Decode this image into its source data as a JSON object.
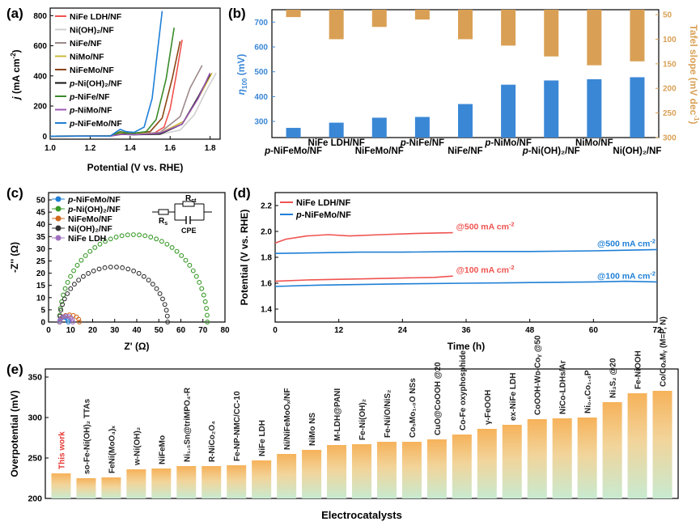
{
  "charts": {
    "a": {
      "label": "(a)",
      "xlabel": "Potential (V vs. RHE)",
      "ylabel_main": "j",
      "ylabel_unit": " (mA cm",
      "ylabel_sup": "-2",
      "ylabel_end": ")",
      "xticks": [
        "1.0",
        "1.2",
        "1.4",
        "1.6",
        "1.8"
      ],
      "yticks": [
        "0",
        "200",
        "400",
        "600",
        "800"
      ],
      "legend": [
        {
          "key": "ldh",
          "pre": "",
          "main": "NiFe LDH/NF",
          "color": "#ef5350"
        },
        {
          "key": "nioh",
          "pre": "",
          "main": "Ni(OH)₂/NF",
          "color": "#d0d0d0"
        },
        {
          "key": "nife",
          "pre": "",
          "main": "NiFe/NF",
          "color": "#9e8a8a"
        },
        {
          "key": "nimo",
          "pre": "",
          "main": "NiMo/NF",
          "color": "#cdbb3a"
        },
        {
          "key": "nifemo",
          "pre": "",
          "main": "NiFeMo/NF",
          "color": "#8b4513"
        },
        {
          "key": "pnioh",
          "pre": "p-",
          "main": "Ni(OH)₂/NF",
          "color": "#111111"
        },
        {
          "key": "pnife",
          "pre": "p-",
          "main": "NiFe/NF",
          "color": "#3a8a2a"
        },
        {
          "key": "pnimo",
          "pre": "p-",
          "main": "NiMo/NF",
          "color": "#9b59b6"
        },
        {
          "key": "pnifemo",
          "pre": "p-",
          "main": "NiFeMo/NF",
          "color": "#1e7fd6"
        }
      ]
    },
    "b": {
      "label": "(b)",
      "ylabel_left": "η",
      "ylabel_left_sub": "100",
      "ylabel_left_end": " (mV)",
      "ylabel_right": "Tafel slope (mV dec",
      "ylabel_right_sup": "-1",
      "ylabel_right_end": ")",
      "left_ticks": [
        "300",
        "400",
        "500",
        "600",
        "700"
      ],
      "right_ticks": [
        "50",
        "100",
        "150",
        "200",
        "250",
        "300"
      ],
      "categories": [
        {
          "pre": "p-",
          "main": "NiFeMo/NF"
        },
        {
          "pre": "",
          "main": "NiFe LDH/NF"
        },
        {
          "pre": "",
          "main": "NiFeMo/NF"
        },
        {
          "pre": "p-",
          "main": "NiFe/NF"
        },
        {
          "pre": "",
          "main": "NiFe/NF"
        },
        {
          "pre": "p-",
          "main": "NiMo/NF"
        },
        {
          "pre": "p-",
          "main": "Ni(OH)₂/NF"
        },
        {
          "pre": "",
          "main": "NiMo/NF"
        },
        {
          "pre": "",
          "main": "Ni(OH)₂/NF"
        }
      ],
      "overpotential_color": "#3a87d6",
      "tafel_color": "#d9a055"
    },
    "c": {
      "label": "(c)",
      "xlabel": "Z' (Ω)",
      "ylabel": "-Z'' (Ω)",
      "xticks": [
        "0",
        "10",
        "20",
        "30",
        "40",
        "50",
        "60",
        "70",
        "80"
      ],
      "yticks": [
        "0",
        "5",
        "10",
        "15",
        "20",
        "25",
        "30",
        "35",
        "40",
        "45",
        "50"
      ],
      "legend": [
        {
          "pre": "p-",
          "main": "NiFeMo/NF",
          "color": "#1e7fd6"
        },
        {
          "pre": "p-",
          "main": "Ni(OH)₂/NF",
          "color": "#3a9a2a"
        },
        {
          "pre": "",
          "main": "NiFeMo/NF",
          "color": "#d06a20"
        },
        {
          "pre": "",
          "main": "Ni(OH)₂/NF",
          "color": "#333333"
        },
        {
          "pre": "",
          "main": "NiFe LDH",
          "color": "#a070c0"
        }
      ],
      "circuit_rs": "R",
      "circuit_rs_sub": "s",
      "circuit_rct": "R",
      "circuit_rct_sub": "ct",
      "circuit_cpe": "CPE"
    },
    "d": {
      "label": "(d)",
      "xlabel": "Time (h)",
      "ylabel": "Potential (V vs. RHE)",
      "xticks": [
        "0",
        "12",
        "24",
        "36",
        "48",
        "60",
        "72"
      ],
      "yticks": [
        "1.4",
        "1.6",
        "1.8",
        "2.0",
        "2.2"
      ],
      "legend": [
        {
          "pre": "",
          "main": "NiFe LDH/NF",
          "color": "#ef5350"
        },
        {
          "pre": "p-",
          "main": "NiFeMo/NF",
          "color": "#1e7fd6"
        }
      ],
      "annotations": [
        {
          "text": "@500 mA cm",
          "sup": "-2",
          "color": "#ef5350"
        },
        {
          "text": "@500 mA cm",
          "sup": "-2",
          "color": "#1e7fd6"
        },
        {
          "text": "@100 mA cm",
          "sup": "-2",
          "color": "#ef5350"
        },
        {
          "text": "@100 mA cm",
          "sup": "-2",
          "color": "#1e7fd6"
        }
      ]
    },
    "e": {
      "label": "(e)",
      "xlabel": "Electrocatalysts",
      "ylabel": "Overpotential (mV)",
      "yticks": [
        "200",
        "250",
        "300",
        "350"
      ],
      "labels": [
        "This work",
        "so-Fe-Ni(OH)₂ TTAs",
        "FeNi(MoO₄)ₓ",
        "w-Ni(OH)₂",
        "NiFeMo",
        "Ni₁.₅Sn@triMPO₄-R",
        "R-NiCo₂O₄",
        "Fe-NP-NMC/CC-10",
        "NiFe LDH",
        "Ni/NiFeMoOₓ/NF",
        "NiMo NS",
        "M-LDH@PANI",
        "Fe-Ni(OH)₂",
        "Fe-Ni/O/NiS₂",
        "Co₅Mo₁.₀O NSs",
        "CuO@CoOOH @20",
        "Co-Fe oxyphosphide",
        "γ-FeOOH",
        "ex-NiFe LDH",
        "CoOOH-Wᴅ-Coᵧ @50",
        "NiCo-LDHs/Ar",
        "Ni₀.₆Co₁.₄P",
        "Ni₃S₂ @20",
        "Fe-NiOOH",
        "Co/CoₓMᵧ (M=P, N)"
      ]
    }
  },
  "chart_data": [
    {
      "type": "line",
      "title": "(a)",
      "xlabel": "Potential (V vs. RHE)",
      "ylabel": "j (mA cm-2)",
      "xlim": [
        1.0,
        1.85
      ],
      "ylim": [
        -20,
        850
      ],
      "series": [
        {
          "name": "NiFe LDH/NF",
          "points": [
            [
              1.0,
              0
            ],
            [
              1.3,
              1
            ],
            [
              1.35,
              25
            ],
            [
              1.38,
              15
            ],
            [
              1.45,
              12
            ],
            [
              1.52,
              20
            ],
            [
              1.57,
              60
            ],
            [
              1.6,
              180
            ],
            [
              1.63,
              400
            ],
            [
              1.66,
              640
            ]
          ]
        },
        {
          "name": "Ni(OH)2/NF",
          "points": [
            [
              1.0,
              0
            ],
            [
              1.3,
              1
            ],
            [
              1.36,
              15
            ],
            [
              1.4,
              10
            ],
            [
              1.55,
              12
            ],
            [
              1.65,
              40
            ],
            [
              1.72,
              140
            ],
            [
              1.78,
              300
            ],
            [
              1.83,
              420
            ]
          ]
        },
        {
          "name": "NiFe/NF",
          "points": [
            [
              1.0,
              0
            ],
            [
              1.3,
              1
            ],
            [
              1.36,
              12
            ],
            [
              1.4,
              10
            ],
            [
              1.55,
              25
            ],
            [
              1.65,
              130
            ],
            [
              1.7,
              320
            ],
            [
              1.76,
              470
            ]
          ]
        },
        {
          "name": "NiMo/NF",
          "points": [
            [
              1.0,
              0
            ],
            [
              1.3,
              1
            ],
            [
              1.35,
              20
            ],
            [
              1.4,
              14
            ],
            [
              1.55,
              20
            ],
            [
              1.67,
              100
            ],
            [
              1.74,
              250
            ],
            [
              1.81,
              420
            ]
          ]
        },
        {
          "name": "NiFeMo/NF",
          "points": [
            [
              1.0,
              0
            ],
            [
              1.3,
              1
            ],
            [
              1.35,
              30
            ],
            [
              1.4,
              18
            ],
            [
              1.5,
              30
            ],
            [
              1.56,
              120
            ],
            [
              1.61,
              380
            ],
            [
              1.65,
              630
            ]
          ]
        },
        {
          "name": "p-Ni(OH)2/NF",
          "points": [
            [
              1.0,
              0
            ],
            [
              1.3,
              1
            ],
            [
              1.36,
              14
            ],
            [
              1.42,
              10
            ],
            [
              1.55,
              14
            ],
            [
              1.66,
              80
            ],
            [
              1.74,
              260
            ],
            [
              1.8,
              410
            ]
          ]
        },
        {
          "name": "p-NiFe/NF",
          "points": [
            [
              1.0,
              0
            ],
            [
              1.3,
              1
            ],
            [
              1.35,
              28
            ],
            [
              1.4,
              16
            ],
            [
              1.48,
              30
            ],
            [
              1.53,
              110
            ],
            [
              1.58,
              380
            ],
            [
              1.62,
              720
            ]
          ]
        },
        {
          "name": "p-NiMo/NF",
          "points": [
            [
              1.0,
              0
            ],
            [
              1.3,
              1
            ],
            [
              1.36,
              12
            ],
            [
              1.42,
              10
            ],
            [
              1.55,
              20
            ],
            [
              1.66,
              80
            ],
            [
              1.74,
              250
            ],
            [
              1.8,
              420
            ]
          ]
        },
        {
          "name": "p-NiFeMo/NF",
          "points": [
            [
              1.0,
              0
            ],
            [
              1.3,
              1
            ],
            [
              1.35,
              45
            ],
            [
              1.38,
              30
            ],
            [
              1.42,
              25
            ],
            [
              1.47,
              60
            ],
            [
              1.51,
              250
            ],
            [
              1.54,
              600
            ],
            [
              1.56,
              830
            ]
          ]
        }
      ]
    },
    {
      "type": "bar",
      "title": "(b)",
      "categories": [
        "p-NiFeMo/NF",
        "NiFe LDH/NF",
        "NiFeMo/NF",
        "p-NiFe/NF",
        "NiFe/NF",
        "p-NiMo/NF",
        "p-Ni(OH)2/NF",
        "NiMo/NF",
        "Ni(OH)2/NF"
      ],
      "series": [
        {
          "name": "eta100 (mV)",
          "axis": "left",
          "values": [
            274,
            295,
            315,
            318,
            370,
            448,
            465,
            470,
            478
          ]
        },
        {
          "name": "Tafel slope (mV dec-1)",
          "axis": "right",
          "values": [
            55,
            100,
            75,
            60,
            100,
            113,
            135,
            153,
            145
          ]
        }
      ],
      "ylim_left": [
        235,
        750
      ],
      "ylim_right": [
        40,
        300
      ]
    },
    {
      "type": "scatter",
      "title": "(c)",
      "xlabel": "Z' (Ohm)",
      "ylabel": "-Z'' (Ohm)",
      "xlim": [
        0,
        80
      ],
      "ylim": [
        0,
        50
      ],
      "series": [
        {
          "name": "p-NiFeMo/NF",
          "semicircle": {
            "x_start": 5,
            "x_end": 9,
            "height": 2
          }
        },
        {
          "name": "p-Ni(OH)2/NF",
          "semicircle": {
            "x_start": 5,
            "x_end": 72,
            "height": 36.5
          }
        },
        {
          "name": "NiFeMo/NF",
          "semicircle": {
            "x_start": 5,
            "x_end": 14,
            "height": 3
          }
        },
        {
          "name": "Ni(OH)2/NF",
          "semicircle": {
            "x_start": 5,
            "x_end": 54,
            "height": 23
          }
        },
        {
          "name": "NiFe LDH",
          "semicircle": {
            "x_start": 5,
            "x_end": 11,
            "height": 2.5
          }
        }
      ]
    },
    {
      "type": "line",
      "title": "(d)",
      "xlabel": "Time (h)",
      "ylabel": "Potential (V vs. RHE)",
      "xlim": [
        0,
        72
      ],
      "ylim": [
        1.3,
        2.3
      ],
      "series": [
        {
          "name": "NiFe LDH/NF @500 mA cm-2",
          "points": [
            [
              0,
              1.91
            ],
            [
              2,
              1.94
            ],
            [
              6,
              1.965
            ],
            [
              10,
              1.975
            ],
            [
              14,
              1.965
            ],
            [
              20,
              1.975
            ],
            [
              27,
              1.985
            ],
            [
              33.5,
              1.99
            ]
          ]
        },
        {
          "name": "p-NiFeMo/NF @500 mA cm-2",
          "points": [
            [
              0,
              1.83
            ],
            [
              8,
              1.835
            ],
            [
              16,
              1.84
            ],
            [
              24,
              1.84
            ],
            [
              36,
              1.845
            ],
            [
              48,
              1.845
            ],
            [
              60,
              1.85
            ],
            [
              72,
              1.86
            ]
          ]
        },
        {
          "name": "NiFe LDH/NF @100 mA cm-2",
          "points": [
            [
              0,
              1.615
            ],
            [
              6,
              1.625
            ],
            [
              12,
              1.63
            ],
            [
              18,
              1.635
            ],
            [
              24,
              1.64
            ],
            [
              30,
              1.645
            ],
            [
              33.5,
              1.655
            ]
          ]
        },
        {
          "name": "p-NiFeMo/NF @100 mA cm-2",
          "points": [
            [
              0,
              1.575
            ],
            [
              8,
              1.585
            ],
            [
              16,
              1.59
            ],
            [
              24,
              1.595
            ],
            [
              36,
              1.6
            ],
            [
              48,
              1.605
            ],
            [
              60,
              1.61
            ],
            [
              66,
              1.615
            ],
            [
              72,
              1.61
            ]
          ]
        }
      ]
    },
    {
      "type": "bar",
      "title": "(e)",
      "xlabel": "Electrocatalysts",
      "ylabel": "Overpotential (mV)",
      "ylim": [
        200,
        350
      ],
      "values": [
        231,
        225,
        226,
        236,
        237,
        240,
        240,
        241,
        247,
        255,
        260,
        266,
        267,
        270,
        270,
        273,
        279,
        286,
        291,
        298,
        299,
        300,
        319,
        330,
        333
      ]
    }
  ]
}
